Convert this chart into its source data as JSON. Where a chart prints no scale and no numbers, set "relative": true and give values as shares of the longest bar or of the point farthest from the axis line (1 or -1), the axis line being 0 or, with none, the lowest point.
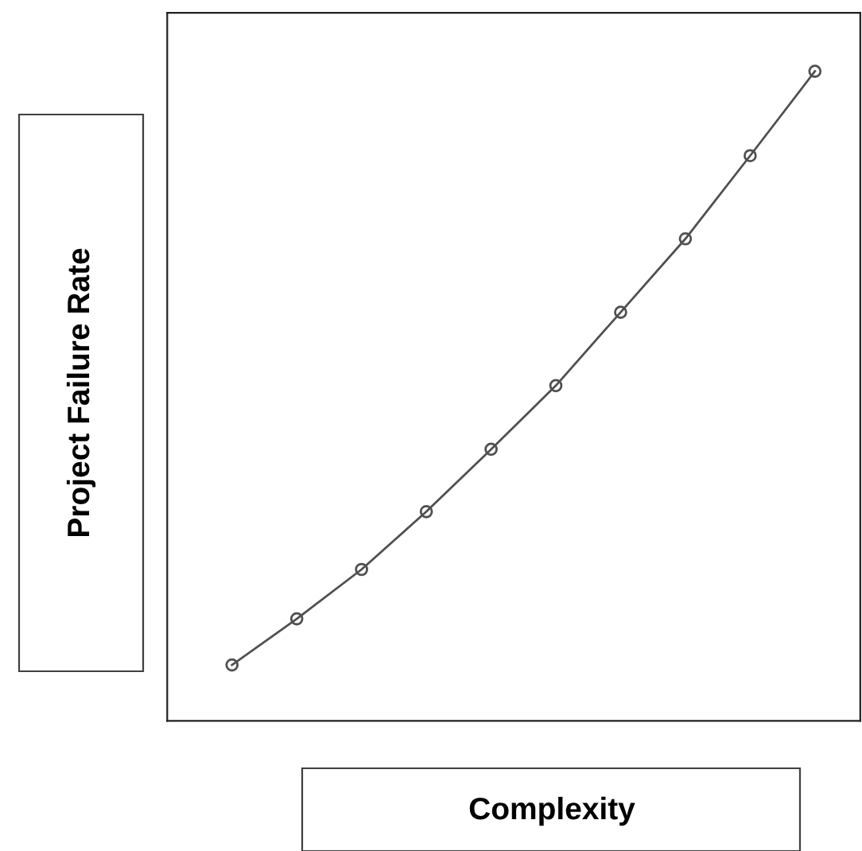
{
  "chart_data": {
    "type": "line",
    "relative": true,
    "xlabel": "Complexity",
    "ylabel": "Project Failure Rate",
    "categories": [
      null,
      null,
      null,
      null,
      null,
      null,
      null,
      null,
      null,
      null
    ],
    "series": [
      {
        "color": "#505050",
        "values": [
          0.086,
          0.157,
          0.233,
          0.322,
          0.418,
          0.516,
          0.629,
          0.742,
          0.87,
          1.0
        ]
      }
    ],
    "marker": "circle",
    "grid": false,
    "legend": false
  }
}
